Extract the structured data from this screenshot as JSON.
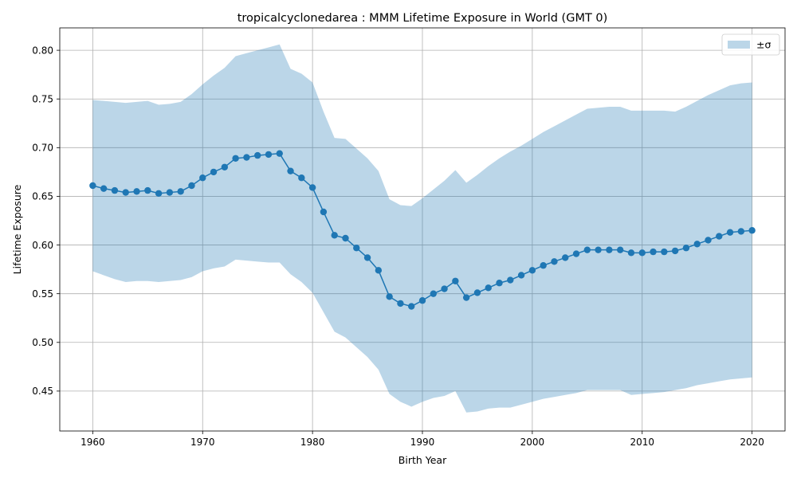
{
  "chart_data": {
    "type": "line",
    "title": "tropicalcyclonedarea : MMM Lifetime Exposure in World (GMT 0)",
    "xlabel": "Birth Year",
    "ylabel": "Lifetime Exposure",
    "xlim": [
      1957,
      2023
    ],
    "ylim": [
      0.409,
      0.823
    ],
    "xticks": [
      1960,
      1970,
      1980,
      1990,
      2000,
      2010,
      2020
    ],
    "yticks": [
      0.45,
      0.5,
      0.55,
      0.6,
      0.65,
      0.7,
      0.75,
      0.8
    ],
    "ytick_labels": [
      "0.45",
      "0.50",
      "0.55",
      "0.60",
      "0.65",
      "0.70",
      "0.75",
      "0.80"
    ],
    "grid": true,
    "legend": {
      "placement": "top-right",
      "entries": [
        {
          "label": "±σ",
          "kind": "band"
        }
      ]
    },
    "colors": {
      "line": "#1f77b4",
      "band": "#1f77b4",
      "band_opacity": 0.3,
      "grid": "#b0b0b0"
    },
    "x": [
      1960,
      1961,
      1962,
      1963,
      1964,
      1965,
      1966,
      1967,
      1968,
      1969,
      1970,
      1971,
      1972,
      1973,
      1974,
      1975,
      1976,
      1977,
      1978,
      1979,
      1980,
      1981,
      1982,
      1983,
      1984,
      1985,
      1986,
      1987,
      1988,
      1989,
      1990,
      1991,
      1992,
      1993,
      1994,
      1995,
      1996,
      1997,
      1998,
      1999,
      2000,
      2001,
      2002,
      2003,
      2004,
      2005,
      2006,
      2007,
      2008,
      2009,
      2010,
      2011,
      2012,
      2013,
      2014,
      2015,
      2016,
      2017,
      2018,
      2019,
      2020
    ],
    "series": [
      {
        "values": [
          0.661,
          0.658,
          0.656,
          0.654,
          0.655,
          0.656,
          0.653,
          0.654,
          0.655,
          0.661,
          0.669,
          0.675,
          0.68,
          0.689,
          0.69,
          0.692,
          0.693,
          0.694,
          0.676,
          0.669,
          0.659,
          0.634,
          0.61,
          0.607,
          0.597,
          0.587,
          0.574,
          0.547,
          0.54,
          0.537,
          0.543,
          0.55,
          0.555,
          0.563,
          0.546,
          0.551,
          0.556,
          0.561,
          0.564,
          0.569,
          0.574,
          0.579,
          0.583,
          0.587,
          0.591,
          0.595,
          0.595,
          0.595,
          0.595,
          0.592,
          0.592,
          0.593,
          0.593,
          0.594,
          0.597,
          0.601,
          0.605,
          0.609,
          0.613,
          0.614,
          0.615
        ],
        "upper": [
          0.749,
          0.748,
          0.747,
          0.746,
          0.747,
          0.748,
          0.744,
          0.745,
          0.747,
          0.755,
          0.765,
          0.774,
          0.782,
          0.794,
          0.797,
          0.8,
          0.803,
          0.806,
          0.781,
          0.776,
          0.767,
          0.737,
          0.71,
          0.709,
          0.699,
          0.689,
          0.676,
          0.647,
          0.641,
          0.64,
          0.648,
          0.657,
          0.666,
          0.677,
          0.664,
          0.672,
          0.681,
          0.689,
          0.696,
          0.702,
          0.709,
          0.716,
          0.722,
          0.728,
          0.734,
          0.74,
          0.741,
          0.742,
          0.742,
          0.738,
          0.738,
          0.738,
          0.738,
          0.737,
          0.742,
          0.748,
          0.754,
          0.759,
          0.764,
          0.766,
          0.767
        ],
        "lower": [
          0.573,
          0.569,
          0.565,
          0.562,
          0.563,
          0.563,
          0.562,
          0.563,
          0.564,
          0.567,
          0.573,
          0.576,
          0.578,
          0.585,
          0.584,
          0.583,
          0.582,
          0.582,
          0.57,
          0.562,
          0.551,
          0.531,
          0.511,
          0.505,
          0.495,
          0.485,
          0.472,
          0.447,
          0.439,
          0.434,
          0.439,
          0.443,
          0.445,
          0.45,
          0.428,
          0.429,
          0.432,
          0.433,
          0.433,
          0.436,
          0.439,
          0.442,
          0.444,
          0.446,
          0.448,
          0.451,
          0.451,
          0.451,
          0.451,
          0.446,
          0.447,
          0.448,
          0.449,
          0.451,
          0.453,
          0.456,
          0.458,
          0.46,
          0.462,
          0.463,
          0.464
        ]
      }
    ]
  }
}
